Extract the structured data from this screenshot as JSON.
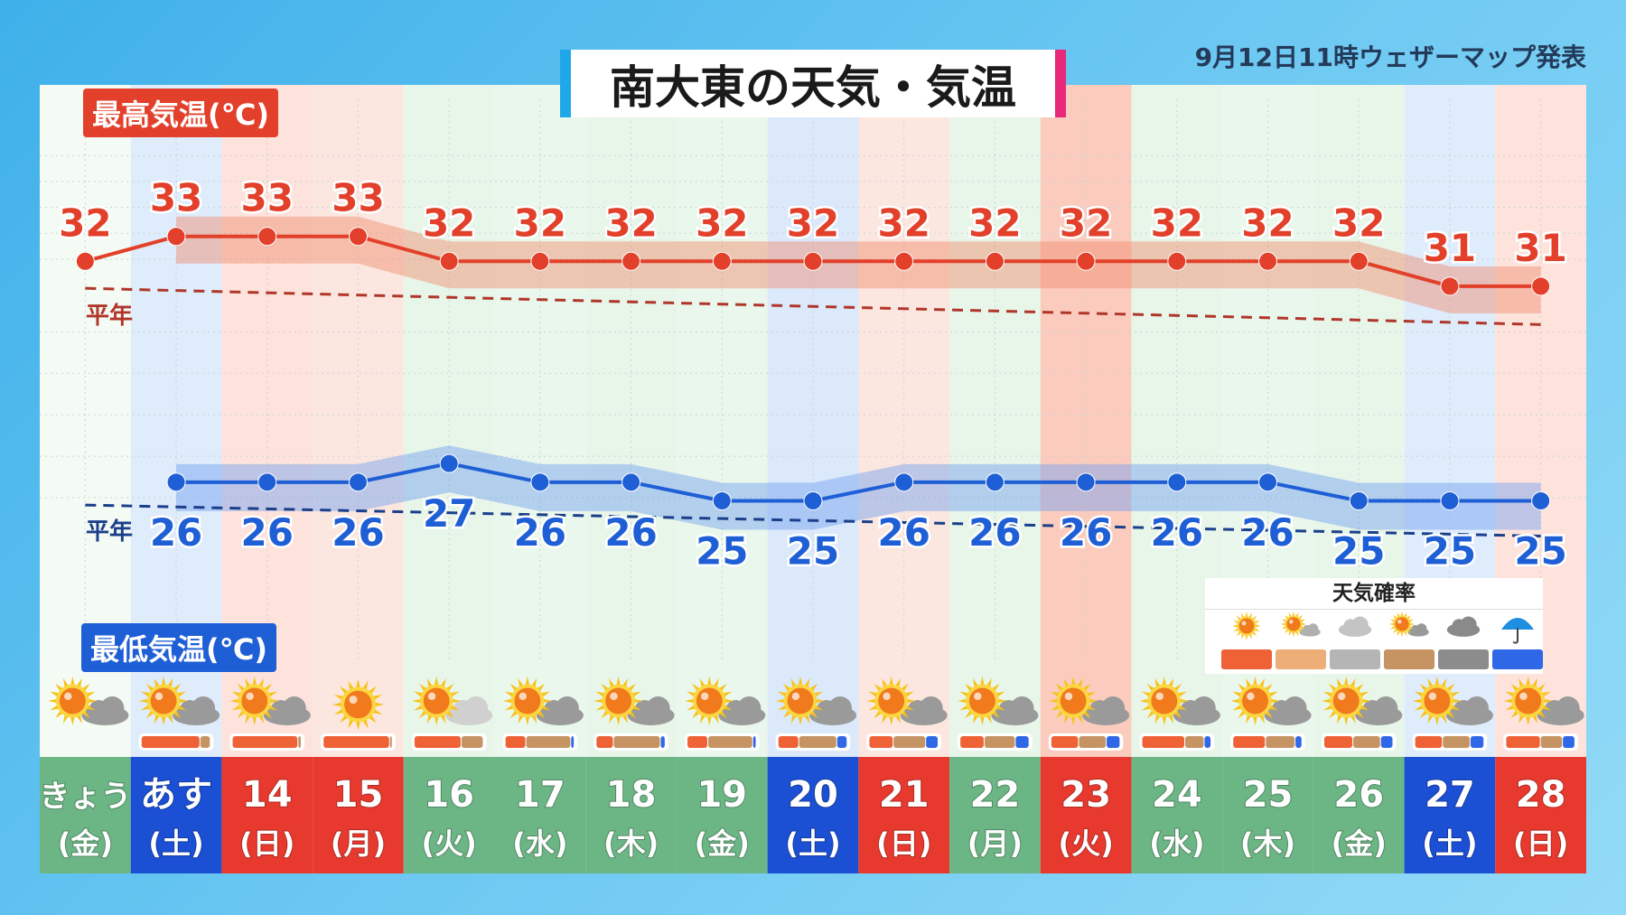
{
  "header": {
    "title": "南大東の天気・気温",
    "issued": "9月12日11時ウェザーマップ発表"
  },
  "labels": {
    "high": "最高気温(℃)",
    "low": "最低気温(℃)",
    "normal": "平年"
  },
  "legend": {
    "title": "天気確率",
    "items": [
      {
        "icon": "sunny-icon",
        "color": "#ee6236"
      },
      {
        "icon": "sunny-then-cloudy-icon",
        "color": "#eeae78"
      },
      {
        "icon": "cloudy-icon",
        "color": "#b5b5b5"
      },
      {
        "icon": "cloudy-sometimes-sunny-icon",
        "color": "#c59462"
      },
      {
        "icon": "overcast-icon",
        "color": "#8c8c8c"
      },
      {
        "icon": "rain-icon",
        "color": "#2f68e6"
      }
    ]
  },
  "colors": {
    "high": "#e2402a",
    "low": "#1f5fd6",
    "weekday": "#6cb585",
    "saturday": "#1b4fd4",
    "holiday": "#e8392e"
  },
  "chart_data": {
    "type": "line",
    "categories": [
      {
        "date": "きょう",
        "dow": "(金)",
        "kind": "weekday"
      },
      {
        "date": "あす",
        "dow": "(土)",
        "kind": "saturday"
      },
      {
        "date": "14",
        "dow": "(日)",
        "kind": "holiday"
      },
      {
        "date": "15",
        "dow": "(月)",
        "kind": "holiday"
      },
      {
        "date": "16",
        "dow": "(火)",
        "kind": "weekday"
      },
      {
        "date": "17",
        "dow": "(水)",
        "kind": "weekday"
      },
      {
        "date": "18",
        "dow": "(木)",
        "kind": "weekday"
      },
      {
        "date": "19",
        "dow": "(金)",
        "kind": "weekday"
      },
      {
        "date": "20",
        "dow": "(土)",
        "kind": "saturday"
      },
      {
        "date": "21",
        "dow": "(日)",
        "kind": "holiday"
      },
      {
        "date": "22",
        "dow": "(月)",
        "kind": "weekday"
      },
      {
        "date": "23",
        "dow": "(火)",
        "kind": "holiday"
      },
      {
        "date": "24",
        "dow": "(水)",
        "kind": "weekday"
      },
      {
        "date": "25",
        "dow": "(木)",
        "kind": "weekday"
      },
      {
        "date": "26",
        "dow": "(金)",
        "kind": "weekday"
      },
      {
        "date": "27",
        "dow": "(土)",
        "kind": "saturday"
      },
      {
        "date": "28",
        "dow": "(日)",
        "kind": "holiday"
      }
    ],
    "series": [
      {
        "name": "最高気温(℃)",
        "values": [
          32,
          33,
          33,
          33,
          32,
          32,
          32,
          32,
          32,
          32,
          32,
          32,
          32,
          32,
          32,
          31,
          31
        ]
      },
      {
        "name": "最低気温(℃)",
        "values": [
          null,
          26,
          26,
          26,
          27,
          26,
          26,
          25,
          25,
          26,
          26,
          26,
          26,
          26,
          25,
          25,
          25
        ]
      }
    ],
    "normal_label": "平年",
    "weather": [
      "sun-cloud",
      "sun-cloud",
      "sun-cloud",
      "sunny",
      "sun-cloud",
      "sun-cloud",
      "sun-cloud",
      "sun-cloud",
      "sun-cloud",
      "sun-cloud",
      "sun-cloud",
      "sun-cloud",
      "sun-cloud",
      "sun-cloud",
      "sun-cloud",
      "sun-cloud",
      "sun-cloud"
    ],
    "probability": [
      null,
      {
        "sunny": 85,
        "cloud_sun": 15,
        "rain": 0
      },
      {
        "sunny": 95,
        "cloud_sun": 5,
        "rain": 0
      },
      {
        "sunny": 96,
        "cloud_sun": 4,
        "rain": 0
      },
      {
        "sunny": 68,
        "cloud_sun": 32,
        "rain": 0
      },
      {
        "sunny": 30,
        "cloud_sun": 65,
        "rain": 5
      },
      {
        "sunny": 25,
        "cloud_sun": 68,
        "rain": 7
      },
      {
        "sunny": 30,
        "cloud_sun": 65,
        "rain": 5
      },
      {
        "sunny": 30,
        "cloud_sun": 55,
        "rain": 15
      },
      {
        "sunny": 35,
        "cloud_sun": 47,
        "rain": 18
      },
      {
        "sunny": 35,
        "cloud_sun": 45,
        "rain": 20
      },
      {
        "sunny": 40,
        "cloud_sun": 40,
        "rain": 20
      },
      {
        "sunny": 62,
        "cloud_sun": 28,
        "rain": 10
      },
      {
        "sunny": 47,
        "cloud_sun": 43,
        "rain": 10
      },
      {
        "sunny": 42,
        "cloud_sun": 40,
        "rain": 18
      },
      {
        "sunny": 40,
        "cloud_sun": 40,
        "rain": 20
      },
      {
        "sunny": 50,
        "cloud_sun": 32,
        "rain": 18
      }
    ]
  }
}
